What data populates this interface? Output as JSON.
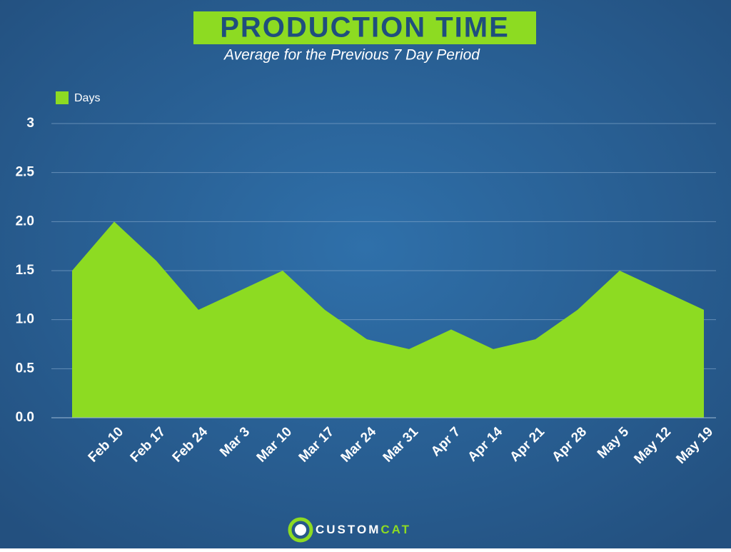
{
  "chart_data": {
    "type": "area",
    "title": "PRODUCTION TIME",
    "subtitle": "Average for the Previous 7 Day Period",
    "categories": [
      null,
      "Feb 10",
      "Feb 17",
      "Feb 24",
      "Mar 3",
      "Mar 10",
      "Mar 17",
      "Mar 24",
      "Mar 31",
      "Apr 7",
      "Apr 14",
      "Apr 21",
      "Apr 28",
      "May 5",
      "May 12",
      "May 19"
    ],
    "series": [
      {
        "name": "Days",
        "color": "#8ddb22",
        "values": [
          1.5,
          2.0,
          1.6,
          1.1,
          1.3,
          1.5,
          1.1,
          0.8,
          0.7,
          0.9,
          0.7,
          0.8,
          1.1,
          1.5,
          1.3,
          1.1
        ]
      }
    ],
    "ylim": [
      0,
      3
    ],
    "yticks": [
      {
        "value": 0,
        "label": "0.0"
      },
      0.5,
      {
        "value": 1,
        "label": "1.0"
      },
      1.5,
      {
        "value": 2,
        "label": "2.0"
      },
      2.5,
      3
    ],
    "grid": true,
    "legend": "top-left"
  },
  "footer": {
    "logo_parts": [
      "CUSTOM",
      "CAT"
    ]
  }
}
